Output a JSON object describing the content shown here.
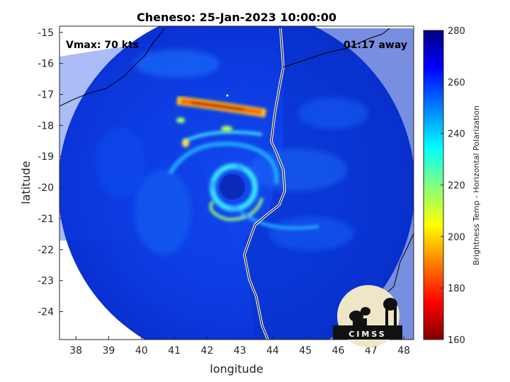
{
  "title": "Cheneso: 25-Jan-2023 10:00:00",
  "annotations": {
    "vmax": "Vmax: 70 kts",
    "time_away": "01:17 away"
  },
  "axes": {
    "xlabel": "longitude",
    "ylabel": "latitude",
    "xticks": [
      "38",
      "39",
      "40",
      "41",
      "42",
      "43",
      "44",
      "45",
      "46",
      "47",
      "48"
    ],
    "yticks": [
      "-15",
      "-16",
      "-17",
      "-18",
      "-19",
      "-20",
      "-21",
      "-22",
      "-23",
      "-24"
    ],
    "xlim": [
      37.5,
      48.3
    ],
    "ylim": [
      -24.9,
      -14.8
    ]
  },
  "colorbar": {
    "label": "Brightness Temp - Horizontal Polarization",
    "ticks": [
      "280",
      "260",
      "240",
      "220",
      "200",
      "180",
      "160"
    ],
    "range": [
      160,
      280
    ],
    "colormap": "jet"
  },
  "logo": {
    "text": "CIMSS"
  },
  "storm_center": {
    "lon": 42.8,
    "lat": -19.95
  },
  "colors": {
    "background_ocean": "#0a2fd6",
    "eyewall": "#35e0ff",
    "rainband_hot": "#b00000",
    "coast": "#000000"
  }
}
